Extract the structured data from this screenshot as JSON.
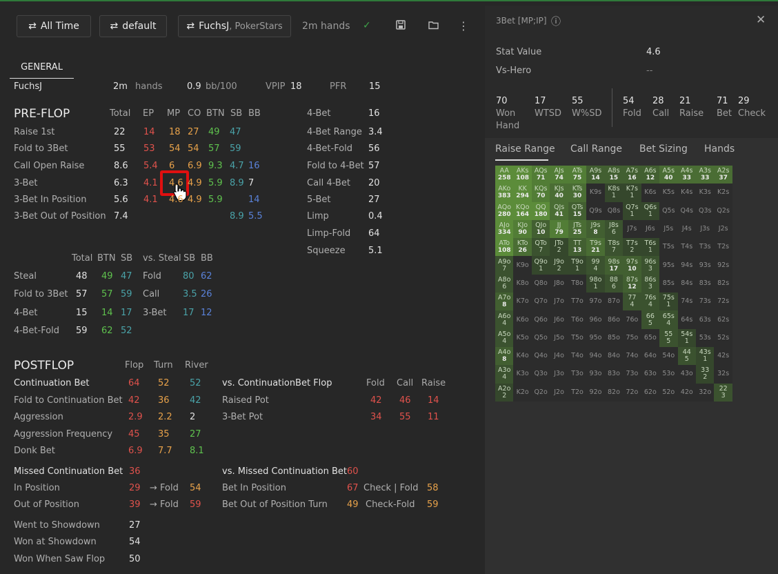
{
  "toolbar": {
    "time": "All Time",
    "filter": "default",
    "player": "FuchsJ",
    "site": ", PokerStars",
    "hands": "2m hands",
    "check": "✓",
    "save": "💾",
    "folder": "🗁",
    "more": "⋮",
    "swap": "⇄"
  },
  "tabs": {
    "general": "GENERAL"
  },
  "summary": {
    "player": "FuchsJ",
    "hands_val": "2m",
    "hands_label": "hands",
    "bb_val": "0.9",
    "bb_label": "bb/100",
    "vpip_label": "VPIP",
    "vpip": "18",
    "pfr_label": "PFR",
    "pfr": "15"
  },
  "preflop": {
    "title": "PRE-FLOP",
    "cols": [
      "Total",
      "EP",
      "MP",
      "CO",
      "BTN",
      "SB",
      "BB"
    ],
    "rows": [
      {
        "label": "Raise 1st",
        "total": "22",
        "ep": "14",
        "mp": "18",
        "co": "27",
        "btn": "49",
        "sb": "47",
        "bb": ""
      },
      {
        "label": "Fold to 3Bet",
        "total": "55",
        "ep": "53",
        "mp": "54",
        "co": "54",
        "btn": "57",
        "sb": "59",
        "bb": ""
      },
      {
        "label": "Call Open Raise",
        "total": "8.6",
        "ep": "5.4",
        "mp": "6",
        "co": "6.9",
        "btn": "9.3",
        "sb": "4.7",
        "bb": "16"
      },
      {
        "label": "3-Bet",
        "total": "6.3",
        "ep": "4.1",
        "mp": "4.6",
        "co": "4.9",
        "btn": "5.9",
        "sb": "8.9",
        "bb": "7"
      },
      {
        "label": "3-Bet In Position",
        "total": "5.6",
        "ep": "4.1",
        "mp": "4.6",
        "co": "4.9",
        "btn": "5.9",
        "sb": "",
        "bb": "14"
      },
      {
        "label": "3-Bet Out of Position",
        "total": "7.4",
        "ep": "",
        "mp": "",
        "co": "",
        "btn": "",
        "sb": "8.9",
        "bb": "5.5"
      }
    ],
    "right": [
      {
        "label": "4-Bet",
        "val": "16"
      },
      {
        "label": "4-Bet Range",
        "val": "3.4"
      },
      {
        "label": "4-Bet-Fold",
        "val": "56"
      },
      {
        "label": "Fold to 4-Bet",
        "val": "57"
      },
      {
        "label": "Call 4-Bet",
        "val": "20"
      },
      {
        "label": "5-Bet",
        "val": "27"
      },
      {
        "label": "Limp",
        "val": "0.4"
      },
      {
        "label": "Limp-Fold",
        "val": "64"
      },
      {
        "label": "Squeeze",
        "val": "5.1"
      }
    ]
  },
  "steal": {
    "cols": [
      "Total",
      "BTN",
      "SB"
    ],
    "vs_label": "vs. Steal",
    "vs_cols": [
      "SB",
      "BB"
    ],
    "rows": [
      {
        "label": "Steal",
        "total": "48",
        "btn": "49",
        "sb": "47",
        "vs": "Fold",
        "vsb": "80",
        "vbb": "62"
      },
      {
        "label": "Fold to 3Bet",
        "total": "57",
        "btn": "57",
        "sb": "59",
        "vs": "Call",
        "vsb": "3.5",
        "vbb": "26"
      },
      {
        "label": "4-Bet",
        "total": "15",
        "btn": "14",
        "sb": "17",
        "vs": "3-Bet",
        "vsb": "17",
        "vbb": "12"
      },
      {
        "label": "4-Bet-Fold",
        "total": "59",
        "btn": "62",
        "sb": "52",
        "vs": "",
        "vsb": "",
        "vbb": ""
      }
    ]
  },
  "postflop": {
    "title": "POSTFLOP",
    "cols": [
      "Flop",
      "Turn",
      "River"
    ],
    "rows": [
      {
        "label": "Continuation Bet",
        "flop": "64",
        "turn": "52",
        "river": "52"
      },
      {
        "label": "Fold to Continuation Bet",
        "flop": "42",
        "turn": "36",
        "river": "42"
      },
      {
        "label": "Aggression",
        "flop": "2.9",
        "turn": "2.2",
        "river": "2"
      },
      {
        "label": "Aggression Frequency",
        "flop": "45",
        "turn": "35",
        "river": "27"
      },
      {
        "label": "Donk Bet",
        "flop": "6.9",
        "turn": "7.7",
        "river": "8.1"
      }
    ],
    "vs_cbet": {
      "title": "vs. ContinuationBet Flop",
      "cols": [
        "Fold",
        "Call",
        "Raise"
      ],
      "rows": [
        {
          "label": "Raised Pot",
          "f": "42",
          "c": "46",
          "r": "14"
        },
        {
          "label": "3-Bet Pot",
          "f": "34",
          "c": "55",
          "r": "11"
        }
      ]
    },
    "missed": {
      "label": "Missed Continuation Bet",
      "val": "36",
      "ip_label": "In Position",
      "ip": "29",
      "ip_fold_label": "→ Fold",
      "ip_fold": "54",
      "oop_label": "Out of Position",
      "oop": "39",
      "oop_fold_label": "→ Fold",
      "oop_fold": "59"
    },
    "vs_missed": {
      "label": "vs. Missed Continuation Bet",
      "val": "60",
      "bip_label": "Bet In Position",
      "bip": "67",
      "cf_label": "Check | Fold",
      "cf": "58",
      "boop_label": "Bet Out of Position Turn",
      "boop": "49",
      "cf2_label": "Check-Fold",
      "cf2": "59"
    },
    "showdown": [
      {
        "label": "Went to Showdown",
        "val": "27"
      },
      {
        "label": "Won at Showdown",
        "val": "54"
      },
      {
        "label": "Won When Saw Flop",
        "val": "50"
      }
    ]
  },
  "panel": {
    "title": "3Bet [MP;IP]",
    "info": "ⓘ",
    "close": "✕",
    "stat_value_label": "Stat Value",
    "stat_value": "4.6",
    "vs_hero_label": "Vs-Hero",
    "vs_hero": "--",
    "stats": [
      {
        "v": "70",
        "l": "Won Hand"
      },
      {
        "v": "17",
        "l": "WTSD"
      },
      {
        "v": "55",
        "l": "W%SD"
      },
      {
        "v": "54",
        "l": "Fold"
      },
      {
        "v": "28",
        "l": "Call"
      },
      {
        "v": "21",
        "l": "Raise"
      },
      {
        "v": "71",
        "l": "Bet"
      },
      {
        "v": "29",
        "l": "Check"
      }
    ],
    "tabs": [
      "Raise Range",
      "Call Range",
      "Bet Sizing",
      "Hands"
    ]
  },
  "range": {
    "cells": [
      [
        "AA",
        "258"
      ],
      [
        "AKs",
        "108"
      ],
      [
        "AQs",
        "71"
      ],
      [
        "AJs",
        "74"
      ],
      [
        "ATs",
        "75"
      ],
      [
        "A9s",
        "14"
      ],
      [
        "A8s",
        "15"
      ],
      [
        "A7s",
        "16"
      ],
      [
        "A6s",
        "12"
      ],
      [
        "A5s",
        "40"
      ],
      [
        "A4s",
        "33"
      ],
      [
        "A3s",
        "33"
      ],
      [
        "A2s",
        "37"
      ],
      [
        "AKo",
        "383"
      ],
      [
        "KK",
        "294"
      ],
      [
        "KQs",
        "70"
      ],
      [
        "KJs",
        "40"
      ],
      [
        "KTs",
        "30"
      ],
      [
        "K9s",
        ""
      ],
      [
        "K8s",
        "1"
      ],
      [
        "K7s",
        "1"
      ],
      [
        "K6s",
        ""
      ],
      [
        "K5s",
        ""
      ],
      [
        "K4s",
        ""
      ],
      [
        "K3s",
        ""
      ],
      [
        "K2s",
        ""
      ],
      [
        "AQo",
        "280"
      ],
      [
        "KQo",
        "164"
      ],
      [
        "QQ",
        "180"
      ],
      [
        "QJs",
        "41"
      ],
      [
        "QTs",
        "15"
      ],
      [
        "Q9s",
        ""
      ],
      [
        "Q8s",
        ""
      ],
      [
        "Q7s",
        "1"
      ],
      [
        "Q6s",
        "1"
      ],
      [
        "Q5s",
        ""
      ],
      [
        "Q4s",
        ""
      ],
      [
        "Q3s",
        ""
      ],
      [
        "Q2s",
        ""
      ],
      [
        "AJo",
        "334"
      ],
      [
        "KJo",
        "90"
      ],
      [
        "QJo",
        "10"
      ],
      [
        "JJ",
        "79"
      ],
      [
        "JTs",
        "25"
      ],
      [
        "J9s",
        "8"
      ],
      [
        "J8s",
        "6"
      ],
      [
        "J7s",
        ""
      ],
      [
        "J6s",
        ""
      ],
      [
        "J5s",
        ""
      ],
      [
        "J4s",
        ""
      ],
      [
        "J3s",
        ""
      ],
      [
        "J2s",
        ""
      ],
      [
        "ATo",
        "108"
      ],
      [
        "KTo",
        "26"
      ],
      [
        "QTo",
        "7"
      ],
      [
        "JTo",
        "2"
      ],
      [
        "TT",
        "13"
      ],
      [
        "T9s",
        "21"
      ],
      [
        "T8s",
        "7"
      ],
      [
        "T7s",
        "2"
      ],
      [
        "T6s",
        "1"
      ],
      [
        "T5s",
        ""
      ],
      [
        "T4s",
        ""
      ],
      [
        "T3s",
        ""
      ],
      [
        "T2s",
        ""
      ],
      [
        "A9o",
        "7"
      ],
      [
        "K9o",
        ""
      ],
      [
        "Q9o",
        "1"
      ],
      [
        "J9o",
        "2"
      ],
      [
        "T9o",
        "1"
      ],
      [
        "99",
        "4"
      ],
      [
        "98s",
        "17"
      ],
      [
        "97s",
        "10"
      ],
      [
        "96s",
        "3"
      ],
      [
        "95s",
        ""
      ],
      [
        "94s",
        ""
      ],
      [
        "93s",
        ""
      ],
      [
        "92s",
        ""
      ],
      [
        "A8o",
        "6"
      ],
      [
        "K8o",
        ""
      ],
      [
        "Q8o",
        ""
      ],
      [
        "J8o",
        ""
      ],
      [
        "T8o",
        ""
      ],
      [
        "98o",
        "1"
      ],
      [
        "88",
        "6"
      ],
      [
        "87s",
        "12"
      ],
      [
        "86s",
        "3"
      ],
      [
        "85s",
        ""
      ],
      [
        "84s",
        ""
      ],
      [
        "83s",
        ""
      ],
      [
        "82s",
        ""
      ],
      [
        "A7o",
        "8"
      ],
      [
        "K7o",
        ""
      ],
      [
        "Q7o",
        ""
      ],
      [
        "J7o",
        ""
      ],
      [
        "T7o",
        ""
      ],
      [
        "97o",
        ""
      ],
      [
        "87o",
        ""
      ],
      [
        "77",
        "4"
      ],
      [
        "76s",
        "4"
      ],
      [
        "75s",
        "1"
      ],
      [
        "74s",
        ""
      ],
      [
        "73s",
        ""
      ],
      [
        "72s",
        ""
      ],
      [
        "A6o",
        "4"
      ],
      [
        "K6o",
        ""
      ],
      [
        "Q6o",
        ""
      ],
      [
        "J6o",
        ""
      ],
      [
        "T6o",
        ""
      ],
      [
        "96o",
        ""
      ],
      [
        "86o",
        ""
      ],
      [
        "76o",
        ""
      ],
      [
        "66",
        "5"
      ],
      [
        "65s",
        "4"
      ],
      [
        "64s",
        ""
      ],
      [
        "63s",
        ""
      ],
      [
        "62s",
        ""
      ],
      [
        "A5o",
        "4"
      ],
      [
        "K5o",
        ""
      ],
      [
        "Q5o",
        ""
      ],
      [
        "J5o",
        ""
      ],
      [
        "T5o",
        ""
      ],
      [
        "95o",
        ""
      ],
      [
        "85o",
        ""
      ],
      [
        "75o",
        ""
      ],
      [
        "65o",
        ""
      ],
      [
        "55",
        "5"
      ],
      [
        "54s",
        "1"
      ],
      [
        "53s",
        ""
      ],
      [
        "52s",
        ""
      ],
      [
        "A4o",
        "8"
      ],
      [
        "K4o",
        ""
      ],
      [
        "Q4o",
        ""
      ],
      [
        "J4o",
        ""
      ],
      [
        "T4o",
        ""
      ],
      [
        "94o",
        ""
      ],
      [
        "84o",
        ""
      ],
      [
        "74o",
        ""
      ],
      [
        "64o",
        ""
      ],
      [
        "54o",
        ""
      ],
      [
        "44",
        "5"
      ],
      [
        "43s",
        "1"
      ],
      [
        "42s",
        ""
      ],
      [
        "A3o",
        "4"
      ],
      [
        "K3o",
        ""
      ],
      [
        "Q3o",
        ""
      ],
      [
        "J3o",
        ""
      ],
      [
        "T3o",
        ""
      ],
      [
        "93o",
        ""
      ],
      [
        "83o",
        ""
      ],
      [
        "73o",
        ""
      ],
      [
        "63o",
        ""
      ],
      [
        "53o",
        ""
      ],
      [
        "43o",
        ""
      ],
      [
        "33",
        "2"
      ],
      [
        "32s",
        ""
      ],
      [
        "A2o",
        "2"
      ],
      [
        "K2o",
        ""
      ],
      [
        "Q2o",
        ""
      ],
      [
        "J2o",
        ""
      ],
      [
        "T2o",
        ""
      ],
      [
        "92o",
        ""
      ],
      [
        "82o",
        ""
      ],
      [
        "72o",
        ""
      ],
      [
        "62o",
        ""
      ],
      [
        "52o",
        ""
      ],
      [
        "42o",
        ""
      ],
      [
        "32o",
        ""
      ],
      [
        "22",
        "3"
      ]
    ]
  },
  "colors": {
    "red": "#e0524c",
    "orange": "#e8a24a",
    "green": "#5fc24e",
    "teal": "#4aa3a9",
    "blue": "#5a82d9",
    "highlight": "#e01010"
  }
}
